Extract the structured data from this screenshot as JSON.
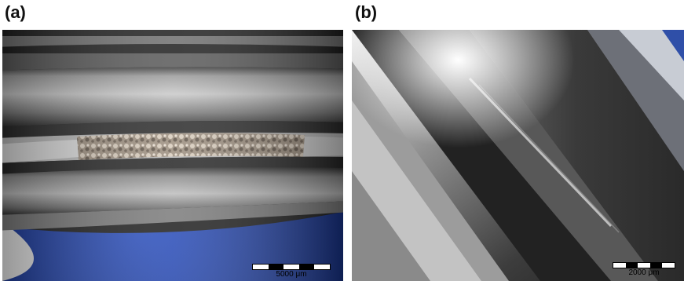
{
  "panels": [
    {
      "label": "(a)",
      "scale_bar": "5000 μm",
      "image": "bearing-raceway-wear-track-photo"
    },
    {
      "label": "(b)",
      "scale_bar": "2000 μm",
      "image": "bearing-raceway-edge-closeup-photo"
    }
  ],
  "colors": {
    "metal": "#8f9092",
    "dark": "#1c1c1c",
    "blue": "#1f3fa0",
    "wear": "#b0a090"
  }
}
